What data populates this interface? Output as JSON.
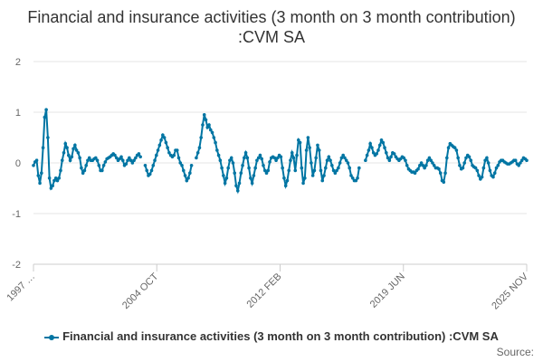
{
  "chart_data": {
    "type": "line",
    "title": "Financial and insurance activities (3 month on 3 month contribution) :CVM SA",
    "xlabel": "",
    "ylabel": "",
    "ylim": [
      -2,
      2
    ],
    "yticks": [
      2,
      1,
      0,
      -1,
      -2
    ],
    "xtick_labels": [
      "1997 …",
      "2004 OCT",
      "2012 FEB",
      "2019 JUN",
      "2025 NOV"
    ],
    "legend": "bottom-center",
    "grid": true,
    "series": [
      {
        "name": "Financial and insurance activities (3 month on 3 month contribution) :CVM SA",
        "color": "#0075a3",
        "values": [
          -0.05,
          0.02,
          0.05,
          -0.25,
          -0.4,
          -0.2,
          0.3,
          0.9,
          1.05,
          0.5,
          -0.3,
          -0.5,
          -0.45,
          -0.35,
          -0.3,
          -0.35,
          -0.3,
          -0.15,
          0.05,
          0.2,
          0.38,
          0.3,
          0.15,
          0.05,
          0.12,
          0.28,
          0.35,
          0.25,
          0.2,
          0.1,
          -0.1,
          -0.2,
          -0.15,
          -0.05,
          0.05,
          0.1,
          0.05,
          0.05,
          0.08,
          0.1,
          0.05,
          -0.05,
          -0.15,
          -0.15,
          -0.05,
          0.02,
          0.08,
          0.1,
          0.12,
          0.15,
          0.18,
          0.15,
          0.1,
          0.05,
          0.08,
          0.12,
          0.05,
          -0.05,
          -0.02,
          0.05,
          0.1,
          0.05,
          0.0,
          0.05,
          0.1,
          0.15,
          0.18,
          0.12,
          null,
          null,
          -0.05,
          -0.15,
          -0.25,
          -0.22,
          -0.15,
          -0.05,
          0.05,
          0.15,
          0.25,
          0.35,
          0.45,
          0.55,
          0.5,
          0.4,
          0.3,
          0.2,
          0.15,
          0.12,
          0.15,
          0.25,
          0.25,
          0.1,
          0.0,
          -0.05,
          -0.15,
          -0.25,
          -0.35,
          -0.3,
          -0.2,
          -0.05,
          null,
          null,
          0.1,
          0.2,
          0.3,
          0.5,
          0.75,
          0.95,
          0.85,
          0.7,
          0.75,
          0.65,
          0.6,
          0.5,
          0.4,
          0.25,
          0.15,
          0.05,
          -0.1,
          -0.25,
          -0.4,
          -0.3,
          -0.1,
          0.05,
          0.1,
          0.0,
          -0.2,
          -0.45,
          -0.55,
          -0.4,
          -0.2,
          -0.05,
          0.1,
          0.2,
          0.1,
          -0.1,
          -0.3,
          -0.4,
          -0.25,
          -0.1,
          0.05,
          0.1,
          0.15,
          0.08,
          -0.05,
          -0.15,
          -0.2,
          -0.15,
          0.02,
          0.1,
          0.12,
          0.1,
          0.05,
          0.1,
          0.15,
          0.12,
          -0.1,
          -0.3,
          -0.45,
          -0.35,
          -0.15,
          0.05,
          0.2,
          0.1,
          -0.15,
          0.15,
          0.45,
          0.4,
          -0.1,
          -0.4,
          -0.3,
          0.25,
          0.5,
          0.3,
          0.0,
          -0.25,
          -0.15,
          0.1,
          0.35,
          0.25,
          -0.15,
          -0.35,
          -0.25,
          -0.1,
          0.05,
          0.12,
          0.05,
          -0.05,
          -0.15,
          -0.2,
          -0.15,
          -0.1,
          0.0,
          0.1,
          0.15,
          0.1,
          0.05,
          0.0,
          -0.1,
          -0.25,
          -0.3,
          -0.35,
          -0.35,
          -0.3,
          -0.1,
          null,
          null,
          null,
          0.05,
          0.15,
          0.25,
          0.38,
          0.3,
          0.2,
          0.15,
          0.18,
          0.25,
          0.35,
          0.45,
          0.4,
          0.3,
          0.2,
          0.1,
          0.05,
          0.12,
          0.2,
          0.18,
          0.12,
          0.08,
          0.05,
          0.08,
          0.12,
          0.1,
          0.05,
          -0.05,
          -0.12,
          -0.15,
          -0.18,
          -0.18,
          -0.2,
          -0.15,
          -0.12,
          -0.05,
          0.0,
          -0.05,
          -0.1,
          -0.05,
          0.05,
          0.1,
          0.05,
          0.0,
          -0.05,
          -0.1,
          -0.1,
          -0.12,
          -0.2,
          -0.35,
          -0.38,
          -0.2,
          0.1,
          0.3,
          0.38,
          0.35,
          0.32,
          0.3,
          0.25,
          0.1,
          -0.05,
          -0.12,
          -0.1,
          0.0,
          0.1,
          0.15,
          0.12,
          0.05,
          -0.05,
          -0.08,
          -0.1,
          -0.15,
          -0.25,
          -0.32,
          -0.28,
          -0.1,
          0.05,
          0.1,
          0.0,
          -0.15,
          -0.25,
          -0.28,
          -0.2,
          -0.1,
          -0.05,
          0.02,
          0.05,
          0.05,
          0.02,
          0.0,
          -0.02,
          -0.02,
          0.0,
          0.02,
          0.05,
          0.05,
          -0.02,
          -0.05,
          0.0,
          0.05,
          0.1,
          0.08,
          0.05
        ]
      }
    ]
  },
  "legend_label": "Financial and insurance activities (3 month on 3 month contribution) :CVM SA",
  "credit": "Source:"
}
